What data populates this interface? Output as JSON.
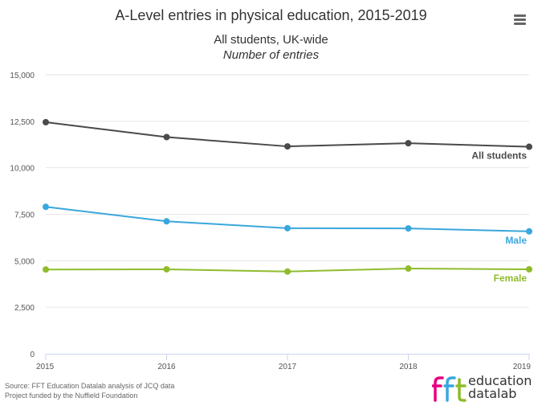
{
  "header": {
    "title": "A-Level entries in physical education, 2015-2019",
    "subtitle_line1": "All students, UK-wide",
    "subtitle_line2": "Number of entries",
    "menu_icon": "hamburger-menu-icon"
  },
  "footer": {
    "source_line1": "Source: FFT Education Datalab analysis of JCQ data",
    "source_line2": "Project funded by the Nuffield Foundation",
    "logo_mark": "fft",
    "logo_text_line1": "education",
    "logo_text_line2": "datalab"
  },
  "chart_data": {
    "type": "line",
    "title": "A-Level entries in physical education, 2015-2019",
    "subtitle": "All students, UK-wide",
    "ylabel": "Number of entries",
    "x": [
      "2015",
      "2016",
      "2017",
      "2018",
      "2019"
    ],
    "ylim": [
      0,
      15000
    ],
    "yticks": [
      0,
      2500,
      5000,
      7500,
      10000,
      12500,
      15000
    ],
    "ytick_labels": [
      "0",
      "2,500",
      "5,000",
      "7,500",
      "10,000",
      "12,500",
      "15,000"
    ],
    "grid": "horizontal",
    "legend": "inline-end-labels",
    "series": [
      {
        "name": "All students",
        "color": "#4a4a4a",
        "values": [
          12450,
          11650,
          11150,
          11320,
          11130
        ]
      },
      {
        "name": "Male",
        "color": "#3aa7dd",
        "values": [
          7900,
          7120,
          6750,
          6740,
          6580
        ]
      },
      {
        "name": "Female",
        "color": "#8fbc2c",
        "values": [
          4530,
          4540,
          4420,
          4580,
          4540
        ]
      }
    ]
  },
  "logo_colors": {
    "f1": "#e5007e",
    "f2": "#3aa7dd",
    "t": "#8fbc2c"
  }
}
